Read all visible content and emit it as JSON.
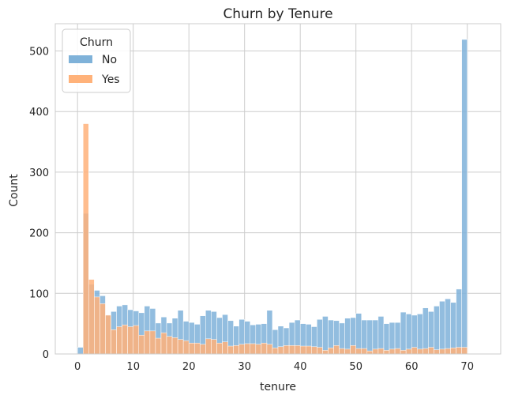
{
  "chart_data": {
    "type": "bar",
    "title": "Churn by Tenure",
    "xlabel": "tenure",
    "ylabel": "Count",
    "xlim": [
      -4,
      76
    ],
    "ylim": [
      0,
      545
    ],
    "xticks": [
      0,
      10,
      20,
      30,
      40,
      50,
      60,
      70
    ],
    "yticks": [
      0,
      100,
      200,
      300,
      400,
      500
    ],
    "grid": true,
    "legend": {
      "title": "Churn",
      "placement": "top-left"
    },
    "bin_width": 1,
    "bin_starts": [
      0,
      1,
      2,
      3,
      4,
      5,
      6,
      7,
      8,
      9,
      10,
      11,
      12,
      13,
      14,
      15,
      16,
      17,
      18,
      19,
      20,
      21,
      22,
      23,
      24,
      25,
      26,
      27,
      28,
      29,
      30,
      31,
      32,
      33,
      34,
      35,
      36,
      37,
      38,
      39,
      40,
      41,
      42,
      43,
      44,
      45,
      46,
      47,
      48,
      49,
      50,
      51,
      52,
      53,
      54,
      55,
      56,
      57,
      58,
      59,
      60,
      61,
      62,
      63,
      64,
      65,
      66,
      67,
      68,
      69,
      70,
      71
    ],
    "series": [
      {
        "name": "No",
        "color": "#7fb2d9",
        "values": [
          11,
          232,
          115,
          105,
          96,
          64,
          70,
          79,
          81,
          73,
          71,
          68,
          79,
          75,
          51,
          61,
          51,
          59,
          72,
          54,
          52,
          49,
          63,
          72,
          70,
          60,
          65,
          55,
          46,
          57,
          54,
          48,
          49,
          50,
          72,
          40,
          46,
          43,
          52,
          56,
          50,
          49,
          45,
          57,
          62,
          56,
          55,
          51,
          59,
          60,
          67,
          56,
          56,
          56,
          62,
          50,
          52,
          52,
          69,
          66,
          64,
          66,
          76,
          70,
          79,
          87,
          91,
          85,
          107,
          519,
          0,
          0
        ]
      },
      {
        "name": "Yes",
        "color": "#ffb27a",
        "values": [
          0,
          380,
          123,
          94,
          83,
          64,
          40,
          45,
          48,
          45,
          47,
          31,
          38,
          38,
          26,
          35,
          29,
          27,
          24,
          22,
          18,
          18,
          16,
          25,
          24,
          18,
          20,
          13,
          14,
          16,
          17,
          17,
          16,
          18,
          16,
          10,
          12,
          14,
          14,
          14,
          13,
          13,
          12,
          11,
          6,
          10,
          14,
          9,
          8,
          14,
          9,
          9,
          5,
          8,
          9,
          6,
          8,
          9,
          6,
          8,
          11,
          8,
          9,
          11,
          7,
          8,
          9,
          10,
          11,
          11,
          0,
          0
        ]
      }
    ]
  }
}
